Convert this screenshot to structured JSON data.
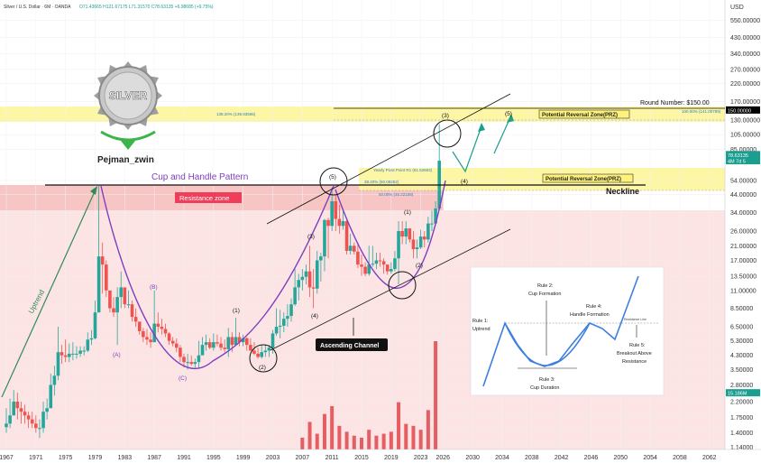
{
  "header": {
    "symbol_line": "Silver / U.S. Dollar · 6M · OANDA",
    "ohlc": "O71.43665 H121.67175 L71.31570 C78.63135 +6.98685 (+9.75%)"
  },
  "watermark": {
    "logo_text": "SILVER",
    "author": "Pejman_zwin"
  },
  "chart_data": {
    "type": "candlestick",
    "scale": "log",
    "ylim": [
      1.1,
      700
    ],
    "xlim": [
      1967,
      2063
    ],
    "currency_label": "USD",
    "x_ticks": [
      "1967",
      "1971",
      "1975",
      "1979",
      "1983",
      "1987",
      "1991",
      "1995",
      "1999",
      "2003",
      "2007",
      "2011",
      "2015",
      "2019",
      "2023",
      "2026",
      "2030",
      "2034",
      "2038",
      "2042",
      "2046",
      "2050",
      "2054",
      "2058",
      "2062"
    ],
    "y_ticks": [
      "550.00000",
      "430.00000",
      "340.00000",
      "270.00000",
      "220.00000",
      "170.00000",
      "130.00000",
      "105.00000",
      "85.00000",
      "54.00000",
      "44.00000",
      "34.00000",
      "26.00000",
      "21.00000",
      "17.00000",
      "13.50000",
      "11.00000",
      "8.50000",
      "6.50000",
      "5.30000",
      "4.30000",
      "3.50000",
      "2.80000",
      "2.20000",
      "1.75000",
      "1.40000",
      "1.14000"
    ],
    "price_badges": [
      {
        "label": "150.00000",
        "value": 150,
        "color": "#000000"
      },
      {
        "label": "78.63135",
        "value": 78.6,
        "color": "#1a9e8f"
      },
      {
        "label": "4M 7d 5",
        "value": 72,
        "color": "#1a9e8f"
      },
      {
        "label": "15.186M",
        "value": 2.5,
        "color": "#1a9e8f"
      }
    ],
    "candles_t": [
      1967.0,
      1967.5,
      1968.0,
      1968.5,
      1969.0,
      1969.5,
      1970.0,
      1970.5,
      1971.0,
      1971.5,
      1972.0,
      1972.5,
      1973.0,
      1973.5,
      1974.0,
      1974.5,
      1975.0,
      1975.5,
      1976.0,
      1976.5,
      1977.0,
      1977.5,
      1978.0,
      1978.5,
      1979.0,
      1979.5,
      1980.0,
      1980.5,
      1981.0,
      1981.5,
      1982.0,
      1982.5,
      1983.0,
      1983.5,
      1984.0,
      1984.5,
      1985.0,
      1985.5,
      1986.0,
      1986.5,
      1987.0,
      1987.5,
      1988.0,
      1988.5,
      1989.0,
      1989.5,
      1990.0,
      1990.5,
      1991.0,
      1991.5,
      1992.0,
      1992.5,
      1993.0,
      1993.5,
      1994.0,
      1994.5,
      1995.0,
      1995.5,
      1996.0,
      1996.5,
      1997.0,
      1997.5,
      1998.0,
      1998.5,
      1999.0,
      1999.5,
      2000.0,
      2000.5,
      2001.0,
      2001.5,
      2002.0,
      2002.5,
      2003.0,
      2003.5,
      2004.0,
      2004.5,
      2005.0,
      2005.5,
      2006.0,
      2006.5,
      2007.0,
      2007.5,
      2008.0,
      2008.5,
      2009.0,
      2009.5,
      2010.0,
      2010.5,
      2011.0,
      2011.5,
      2012.0,
      2012.5,
      2013.0,
      2013.5,
      2014.0,
      2014.5,
      2015.0,
      2015.5,
      2016.0,
      2016.5,
      2017.0,
      2017.5,
      2018.0,
      2018.5,
      2019.0,
      2019.5,
      2020.0,
      2020.5,
      2021.0,
      2021.5,
      2022.0,
      2022.5,
      2023.0,
      2023.5,
      2024.0,
      2024.5,
      2025.0,
      2025.5
    ],
    "candles_c": [
      1.6,
      1.8,
      2.2,
      2.0,
      1.9,
      1.8,
      1.7,
      1.6,
      1.5,
      1.5,
      1.9,
      2.0,
      2.8,
      3.2,
      4.5,
      4.3,
      4.2,
      4.4,
      4.4,
      4.4,
      4.6,
      4.6,
      5.4,
      5.5,
      8.0,
      18.0,
      16.0,
      11.0,
      8.5,
      8.0,
      10.0,
      11.5,
      9.0,
      9.0,
      7.5,
      7.0,
      6.1,
      5.6,
      5.4,
      5.2,
      6.8,
      6.5,
      6.3,
      5.9,
      5.3,
      5.1,
      4.8,
      4.2,
      3.9,
      3.9,
      3.8,
      3.9,
      4.3,
      5.0,
      5.2,
      4.8,
      5.2,
      5.1,
      4.8,
      4.7,
      5.6,
      5.0,
      5.6,
      5.2,
      5.5,
      5.0,
      4.6,
      4.4,
      4.2,
      4.5,
      4.6,
      4.8,
      5.9,
      6.5,
      6.6,
      7.3,
      7.6,
      9.0,
      11.5,
      12.8,
      13.4,
      14.5,
      11.5,
      11.3,
      17.0,
      18.0,
      30.5,
      28.0,
      40.0,
      31.0,
      28.0,
      30.0,
      19.5,
      21.0,
      19.3,
      16.0,
      15.5,
      14.0,
      16.0,
      16.2,
      17.0,
      16.8,
      16.0,
      14.5,
      15.0,
      17.5,
      26.0,
      24.0,
      27.0,
      23.0,
      20.0,
      20.5,
      24.0,
      23.0,
      29.0,
      29.0,
      36.0,
      72.0
    ],
    "candles_h": [
      2.0,
      2.3,
      2.6,
      2.5,
      2.2,
      2.1,
      1.9,
      1.9,
      1.8,
      1.7,
      2.2,
      2.3,
      3.3,
      3.7,
      6.5,
      5.0,
      5.4,
      5.1,
      5.2,
      4.9,
      4.9,
      4.9,
      6.0,
      6.2,
      9.5,
      50.0,
      22.0,
      17.0,
      10.0,
      10.0,
      11.5,
      14.5,
      11.0,
      11.0,
      9.5,
      8.5,
      7.0,
      6.4,
      6.3,
      6.0,
      11.0,
      8.0,
      7.3,
      6.8,
      6.0,
      5.6,
      5.5,
      5.0,
      4.4,
      4.4,
      4.3,
      4.1,
      5.3,
      5.6,
      5.8,
      5.5,
      5.9,
      5.8,
      5.6,
      5.4,
      6.4,
      6.0,
      7.4,
      6.0,
      5.8,
      5.6,
      5.5,
      5.2,
      4.8,
      5.0,
      5.0,
      5.0,
      6.2,
      8.5,
      8.3,
      8.0,
      9.0,
      9.8,
      15.0,
      14.0,
      15.0,
      16.0,
      21.0,
      15.0,
      19.5,
      19.0,
      31.0,
      31.5,
      49.0,
      44.0,
      38.0,
      35.0,
      31.0,
      25.0,
      22.0,
      22.0,
      18.5,
      16.5,
      21.0,
      21.0,
      19.0,
      19.0,
      17.5,
      16.0,
      16.5,
      19.5,
      30.0,
      30.0,
      30.0,
      27.0,
      26.0,
      23.0,
      26.5,
      26.0,
      32.0,
      35.0,
      40.0,
      122.0
    ],
    "candles_l": [
      1.4,
      1.5,
      1.8,
      1.7,
      1.6,
      1.6,
      1.5,
      1.5,
      1.4,
      1.3,
      1.4,
      1.7,
      2.0,
      2.4,
      3.0,
      3.8,
      3.9,
      3.9,
      4.0,
      4.1,
      4.2,
      4.3,
      4.5,
      5.0,
      5.4,
      8.0,
      10.5,
      10.0,
      8.0,
      7.5,
      5.0,
      8.5,
      8.5,
      8.5,
      7.0,
      6.5,
      5.8,
      5.2,
      5.0,
      4.8,
      5.2,
      6.0,
      5.8,
      5.6,
      5.0,
      4.9,
      4.5,
      3.9,
      3.6,
      3.5,
      3.7,
      3.6,
      3.6,
      4.6,
      4.6,
      4.7,
      4.6,
      4.9,
      4.6,
      4.5,
      4.2,
      4.5,
      5.0,
      4.9,
      4.9,
      4.6,
      4.6,
      4.3,
      4.1,
      4.1,
      4.2,
      4.2,
      4.4,
      5.7,
      5.5,
      6.0,
      6.5,
      7.0,
      8.8,
      9.5,
      11.0,
      12.0,
      10.0,
      8.5,
      10.5,
      12.5,
      14.5,
      17.5,
      26.0,
      26.0,
      25.0,
      26.5,
      18.5,
      18.5,
      18.5,
      15.2,
      13.6,
      13.5,
      13.6,
      15.5,
      15.0,
      15.5,
      14.0,
      13.8,
      14.0,
      14.5,
      12.0,
      21.5,
      21.5,
      22.0,
      17.5,
      17.5,
      20.0,
      20.5,
      22.0,
      26.0,
      28.0,
      35.0
    ],
    "volume_t": [
      2007,
      2008,
      2009,
      2010,
      2011,
      2012,
      2013,
      2014,
      2015,
      2016,
      2017,
      2018,
      2019,
      2020,
      2021,
      2022,
      2023,
      2024,
      2025
    ],
    "volume_v": [
      6,
      14,
      8,
      18,
      22,
      12,
      9,
      7,
      6,
      10,
      7,
      8,
      9,
      24,
      13,
      12,
      10,
      20,
      55
    ],
    "annotations": {
      "round_number": "Round Number: $150.00",
      "cup_handle": "Cup and Handle Pattern",
      "resistance_zone": "Resistance zone",
      "neckline": "Neckline",
      "ascending_channel": "Ascending Channel",
      "prz1": "Potential Reversal Zone(PRZ)",
      "prz2": "Potential Reversal Zone(PRZ)",
      "uptrend": "Uptrend",
      "fib_upper": "138.20% (139.93565)",
      "fib_upper_right": "100.00% (141.00789)",
      "pivot": "Yearly Pivot Point  R1 (61.52683)",
      "fib_mid": "38.20% (50.08262)",
      "fib_low": "50.00% (46.22158)",
      "waves": [
        "(A)",
        "(B)",
        "(C)",
        "(1)",
        "(2)",
        "(3)",
        "(4)",
        "(5)",
        "(1)",
        "(2)",
        "(3)",
        "(4)",
        "(5)"
      ]
    },
    "inset": {
      "rule1": "Rule 1:",
      "rule1b": "Uptrend",
      "rule2": "Rule 2:",
      "rule2b": "Cup Formation",
      "rule3": "Rule 3:",
      "rule3b": "Cup Duration",
      "rule4": "Rule 4:",
      "rule4b": "Handle Formation",
      "rule5": "Rule 5:",
      "rule5b": "Breakout Above",
      "rule5c": "Resistance",
      "resistance_line": "Resistance Line"
    }
  },
  "colors": {
    "up": "#26a69a",
    "down": "#ef5350",
    "resistance_fill": "#f8c5c5",
    "prz_fill": "#fff8a8",
    "purple": "#7e3fbf",
    "green_line": "#2e8b57",
    "volume": "#e0474c"
  }
}
